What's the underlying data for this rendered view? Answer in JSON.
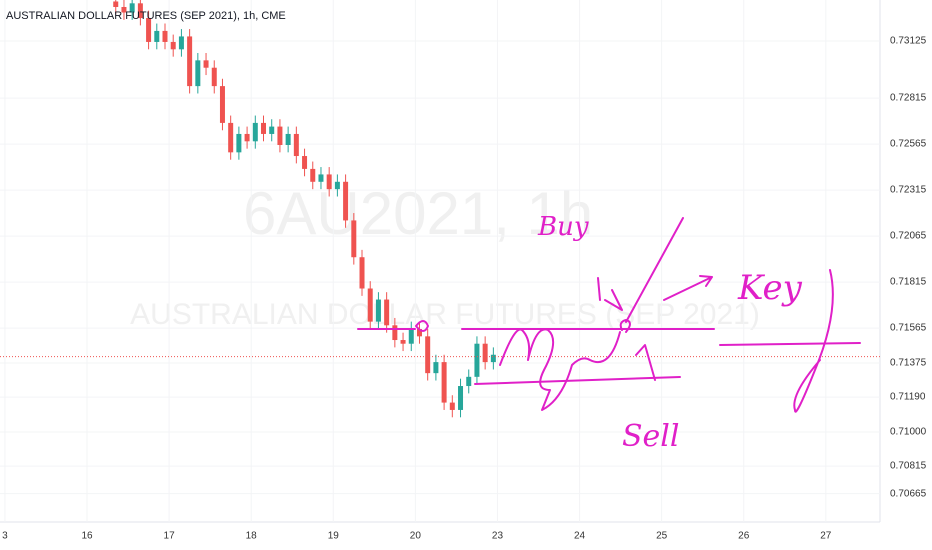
{
  "chart_data": {
    "type": "candlestick",
    "title": "AUSTRALIAN DOLLAR FUTURES (SEP 2021), 1h, CME",
    "watermark": [
      "6AU2021, 1h",
      "AUSTRALIAN DOLLAR FUTURES (SEP 2021)"
    ],
    "up_color": "#26a69a",
    "down_color": "#ef5350",
    "x": [
      1.35,
      1.45,
      1.55,
      1.65,
      1.75,
      1.85,
      1.95,
      2.05,
      2.15,
      2.25,
      2.35,
      2.45,
      2.55,
      2.65,
      2.75,
      2.85,
      2.95,
      3.05,
      3.15,
      3.25,
      3.35,
      3.45,
      3.55,
      3.65,
      3.75,
      3.85,
      3.95,
      4.05,
      4.15,
      4.25,
      4.35,
      4.45,
      4.55,
      4.65,
      4.75,
      4.85,
      4.95,
      5.05,
      5.15,
      5.25,
      5.35,
      5.45,
      5.55,
      5.65,
      5.75,
      5.85,
      5.95
    ],
    "open": [
      0.7334,
      0.7331,
      0.7328,
      0.7333,
      0.7325,
      0.7312,
      0.7318,
      0.7312,
      0.7308,
      0.7315,
      0.7288,
      0.7302,
      0.7298,
      0.7288,
      0.7268,
      0.7252,
      0.7262,
      0.7258,
      0.7268,
      0.7262,
      0.7266,
      0.7256,
      0.7262,
      0.725,
      0.7243,
      0.7236,
      0.724,
      0.7232,
      0.7236,
      0.7215,
      0.7195,
      0.7178,
      0.716,
      0.7172,
      0.7158,
      0.715,
      0.7148,
      0.7156,
      0.7152,
      0.7132,
      0.7138,
      0.7116,
      0.7112,
      0.7125,
      0.713,
      0.7148,
      0.7138
    ],
    "high": [
      0.7338,
      0.7335,
      0.7337,
      0.7337,
      0.7329,
      0.7322,
      0.7322,
      0.7316,
      0.7319,
      0.7319,
      0.7306,
      0.7306,
      0.7302,
      0.7292,
      0.7272,
      0.7266,
      0.7266,
      0.7272,
      0.7272,
      0.727,
      0.727,
      0.7266,
      0.7266,
      0.7254,
      0.7247,
      0.7244,
      0.7244,
      0.724,
      0.724,
      0.7219,
      0.7199,
      0.7182,
      0.7176,
      0.7176,
      0.7162,
      0.7154,
      0.716,
      0.716,
      0.7156,
      0.7142,
      0.7142,
      0.712,
      0.7129,
      0.7134,
      0.7152,
      0.7152,
      0.7146
    ],
    "low": [
      0.7327,
      0.7324,
      0.7324,
      0.7321,
      0.7308,
      0.7308,
      0.7308,
      0.7304,
      0.7304,
      0.7284,
      0.7284,
      0.7294,
      0.7284,
      0.7264,
      0.7248,
      0.7248,
      0.7254,
      0.7254,
      0.7258,
      0.7258,
      0.7252,
      0.7252,
      0.7246,
      0.7239,
      0.7232,
      0.7232,
      0.7228,
      0.7228,
      0.7211,
      0.7191,
      0.7174,
      0.7156,
      0.7156,
      0.7154,
      0.7146,
      0.7144,
      0.7144,
      0.7148,
      0.7128,
      0.7128,
      0.7112,
      0.7108,
      0.7108,
      0.7121,
      0.7126,
      0.7134,
      0.7134
    ],
    "close": [
      0.7331,
      0.7328,
      0.7333,
      0.7325,
      0.7312,
      0.7318,
      0.7312,
      0.7308,
      0.7315,
      0.7288,
      0.7302,
      0.7298,
      0.7288,
      0.7268,
      0.7252,
      0.7262,
      0.7258,
      0.7268,
      0.7262,
      0.7266,
      0.7256,
      0.7262,
      0.725,
      0.7243,
      0.7236,
      0.724,
      0.7232,
      0.7236,
      0.7215,
      0.7195,
      0.7178,
      0.716,
      0.7172,
      0.7158,
      0.715,
      0.7148,
      0.7156,
      0.7152,
      0.7132,
      0.7138,
      0.7116,
      0.7112,
      0.7125,
      0.713,
      0.7148,
      0.7138,
      0.7142
    ],
    "last_price": 0.7141,
    "last_price_color": "#ef5350",
    "xlim": [
      -0.06,
      10.66
    ],
    "xticks": [
      {
        "value": 0,
        "label": "3"
      },
      {
        "value": 1,
        "label": "16"
      },
      {
        "value": 2,
        "label": "17"
      },
      {
        "value": 3,
        "label": "18"
      },
      {
        "value": 4,
        "label": "19"
      },
      {
        "value": 5,
        "label": "20"
      },
      {
        "value": 6,
        "label": "23"
      },
      {
        "value": 7,
        "label": "24"
      },
      {
        "value": 8,
        "label": "25"
      },
      {
        "value": 9,
        "label": "26"
      },
      {
        "value": 10,
        "label": "27"
      }
    ],
    "ylim": [
      0.70511,
      0.73348
    ],
    "yticks": [
      0.73125,
      0.72815,
      0.72565,
      0.72315,
      0.72065,
      0.71815,
      0.71565,
      0.71375,
      {
        "value": 0.7119,
        "label": "0.71190"
      },
      {
        "value": 0.71,
        "label": "0.71000"
      },
      0.70815,
      0.70665
    ],
    "annotations": [
      "Buy",
      "Key",
      "Sell"
    ]
  }
}
